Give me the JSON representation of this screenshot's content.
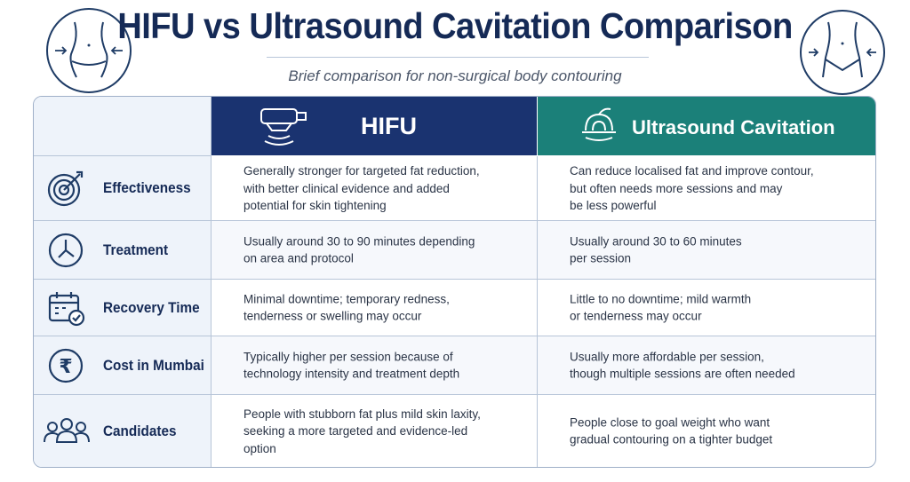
{
  "header": {
    "title": "HIFU vs Ultrasound Cavitation Comparison",
    "subtitle": "Brief comparison for non-surgical body contouring"
  },
  "decorations": {
    "left_icon": "waist-slimming-icon",
    "right_icon": "waist-contour-icon"
  },
  "table": {
    "columns": [
      {
        "label": "HIFU",
        "icon": "hifu-probe-icon",
        "color": "#1a3370"
      },
      {
        "label": "Ultrasound Cavitation",
        "icon": "cavitation-device-icon",
        "color": "#1b8079"
      }
    ],
    "rows": [
      {
        "label": "Effectiveness",
        "icon": "target-icon",
        "hifu": "Generally stronger for targeted fat reduction,\nwith better clinical evidence and added\npotential for skin tightening",
        "cavitation": "Can reduce localised fat and improve contour,\nbut often needs more sessions and may\nbe less powerful"
      },
      {
        "label": "Treatment",
        "icon": "clock-icon",
        "hifu": "Usually around 30 to 90 minutes depending\non area and protocol",
        "cavitation": "Usually around 30 to 60 minutes\nper session"
      },
      {
        "label": "Recovery Time",
        "icon": "calendar-check-icon",
        "hifu": "Minimal downtime; temporary redness,\ntenderness or swelling may occur",
        "cavitation": "Little to no downtime; mild warmth\nor tenderness may occur"
      },
      {
        "label": "Cost in Mumbai",
        "icon": "rupee-icon",
        "hifu": "Typically higher per session because of\ntechnology intensity and treatment depth",
        "cavitation": "Usually more affordable per session,\nthough multiple sessions are often needed"
      },
      {
        "label": "Candidates",
        "icon": "people-group-icon",
        "hifu": "People with stubborn fat plus mild skin laxity,\nseeking a more targeted and evidence-led\noption",
        "cavitation": "People close to goal weight who want\ngradual contouring on a tighter budget"
      }
    ]
  }
}
